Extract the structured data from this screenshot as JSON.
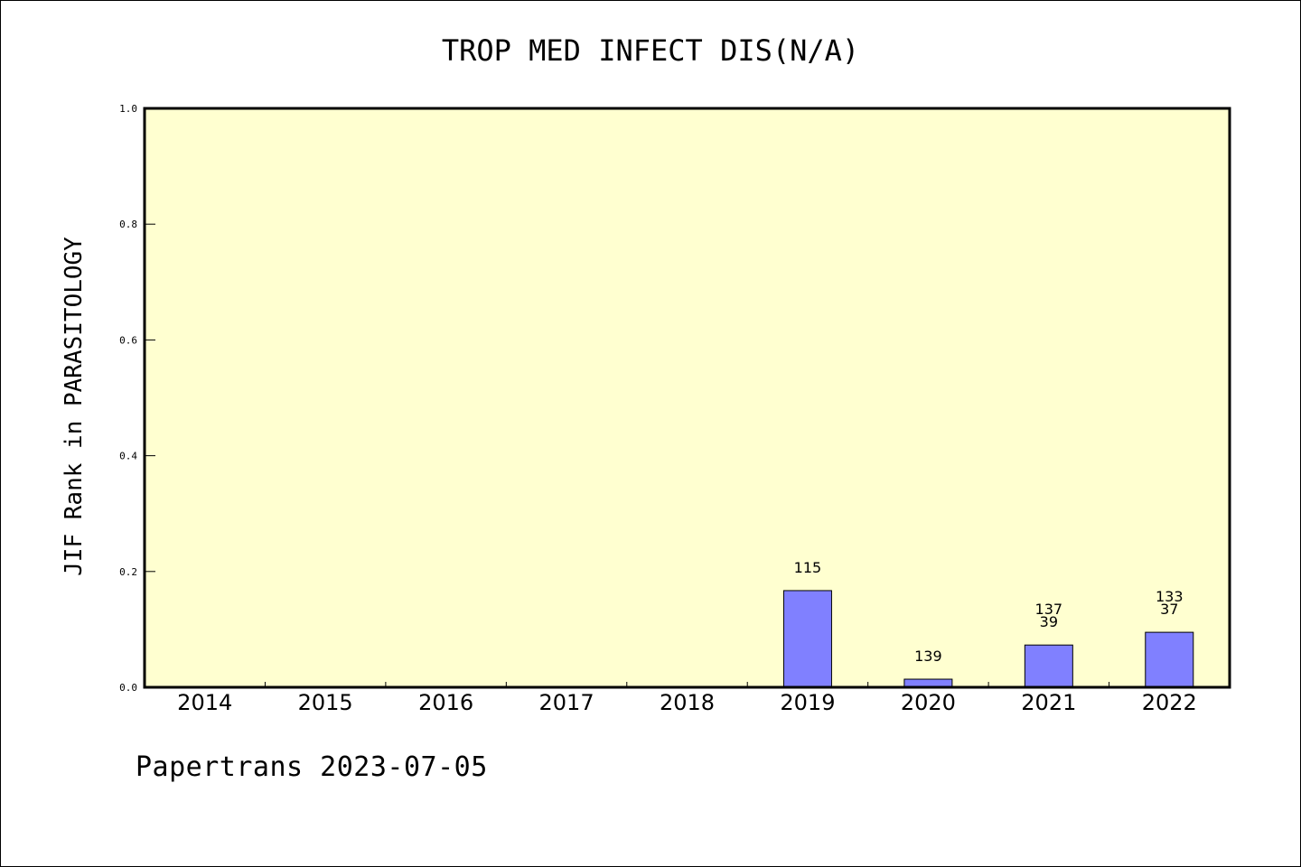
{
  "footer": "Papertrans 2023-07-05",
  "colors": {
    "plot_background": "#ffffd0",
    "bar_fill": "#8080ff",
    "axis": "#000000"
  },
  "chart_data": {
    "type": "bar",
    "title": "TROP MED INFECT DIS(N/A)",
    "ylabel": "JIF Rank in PARASITOLOGY",
    "xlabel": "",
    "ylim": [
      0,
      1.0
    ],
    "yticks": [
      "0.0",
      "0.2",
      "0.4",
      "0.6",
      "0.8",
      "1.0"
    ],
    "grid": false,
    "categories": [
      "2014",
      "2015",
      "2016",
      "2017",
      "2018",
      "2019",
      "2020",
      "2021",
      "2022"
    ],
    "values": [
      0,
      0,
      0,
      0,
      0,
      0.167,
      0.014,
      0.073,
      0.095
    ],
    "bar_labels": [
      [],
      [],
      [],
      [],
      [],
      [
        "115"
      ],
      [
        "139"
      ],
      [
        "137",
        "39"
      ],
      [
        "133",
        "37"
      ]
    ]
  }
}
